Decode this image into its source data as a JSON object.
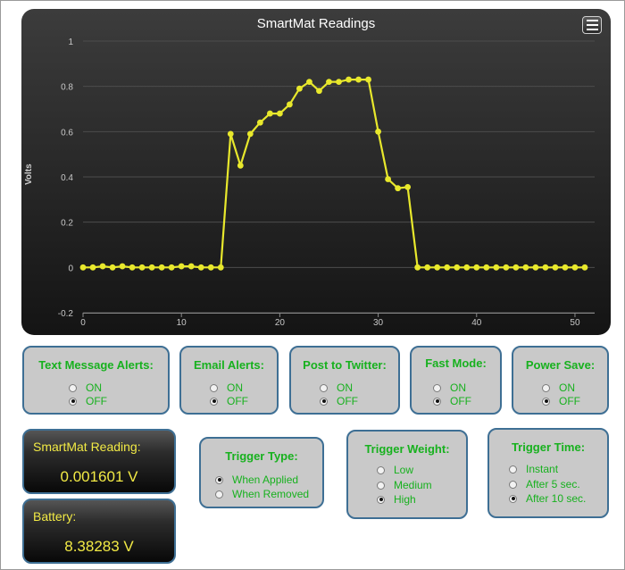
{
  "chart": {
    "title": "SmartMat Readings",
    "ylabel": "Volts",
    "menu_icon": "hamburger-menu-icon"
  },
  "chart_data": {
    "type": "line",
    "title": "SmartMat Readings",
    "xlabel": "",
    "ylabel": "Volts",
    "xlim": [
      0,
      52
    ],
    "ylim": [
      -0.2,
      1
    ],
    "xticks": [
      0,
      10,
      20,
      30,
      40,
      50
    ],
    "yticks": [
      -0.2,
      0,
      0.2,
      0.4,
      0.6,
      0.8,
      1
    ],
    "grid": true,
    "line_color": "#e8e82c",
    "series": [
      {
        "x": [
          0,
          1,
          2,
          3,
          4,
          5,
          6,
          7,
          8,
          9,
          10,
          11,
          12,
          13,
          14,
          15,
          16,
          17,
          18,
          19,
          20,
          21,
          22,
          23,
          24,
          25,
          26,
          27,
          28,
          29,
          30,
          31,
          32,
          33,
          34,
          35,
          36,
          37,
          38,
          39,
          40,
          41,
          42,
          43,
          44,
          45,
          46,
          47,
          48,
          49,
          50,
          51
        ],
        "y": [
          0,
          0,
          0.005,
          0,
          0.005,
          0,
          0,
          0,
          0,
          0,
          0.005,
          0.005,
          0,
          0,
          0,
          0.59,
          0.45,
          0.59,
          0.64,
          0.68,
          0.68,
          0.72,
          0.79,
          0.82,
          0.78,
          0.82,
          0.82,
          0.83,
          0.83,
          0.83,
          0.6,
          0.39,
          0.35,
          0.355,
          0,
          0,
          0,
          0,
          0,
          0,
          0,
          0,
          0,
          0,
          0,
          0,
          0,
          0,
          0,
          0,
          0,
          0
        ]
      }
    ]
  },
  "settings": [
    {
      "title": "Text Message Alerts:",
      "options": [
        {
          "label": "ON",
          "selected": false
        },
        {
          "label": "OFF",
          "selected": true
        }
      ]
    },
    {
      "title": "Email Alerts:",
      "options": [
        {
          "label": "ON",
          "selected": false
        },
        {
          "label": "OFF",
          "selected": true
        }
      ]
    },
    {
      "title": "Post to Twitter:",
      "options": [
        {
          "label": "ON",
          "selected": false
        },
        {
          "label": "OFF",
          "selected": true
        }
      ]
    },
    {
      "title": "Fast Mode:",
      "options": [
        {
          "label": "ON",
          "selected": false
        },
        {
          "label": "OFF",
          "selected": true
        }
      ]
    },
    {
      "title": "Power Save:",
      "options": [
        {
          "label": "ON",
          "selected": false
        },
        {
          "label": "OFF",
          "selected": true
        }
      ]
    }
  ],
  "reading": {
    "label": "SmartMat Reading:",
    "value": "0.001601 V"
  },
  "battery": {
    "label": "Battery:",
    "value": "8.38283 V"
  },
  "trigger_type": {
    "title": "Trigger Type:",
    "options": [
      {
        "label": "When Applied",
        "selected": true
      },
      {
        "label": "When Removed",
        "selected": false
      }
    ]
  },
  "trigger_weight": {
    "title": "Trigger Weight:",
    "options": [
      {
        "label": "Low",
        "selected": false
      },
      {
        "label": "Medium",
        "selected": false
      },
      {
        "label": "High",
        "selected": true
      }
    ]
  },
  "trigger_time": {
    "title": "Trigger Time:",
    "options": [
      {
        "label": "Instant",
        "selected": false
      },
      {
        "label": "After 5 sec.",
        "selected": false
      },
      {
        "label": "After 10 sec.",
        "selected": true
      }
    ]
  },
  "colors": {
    "accent_text": "#17b11e",
    "readout_text": "#f2ea45",
    "border": "#3e6f94"
  }
}
